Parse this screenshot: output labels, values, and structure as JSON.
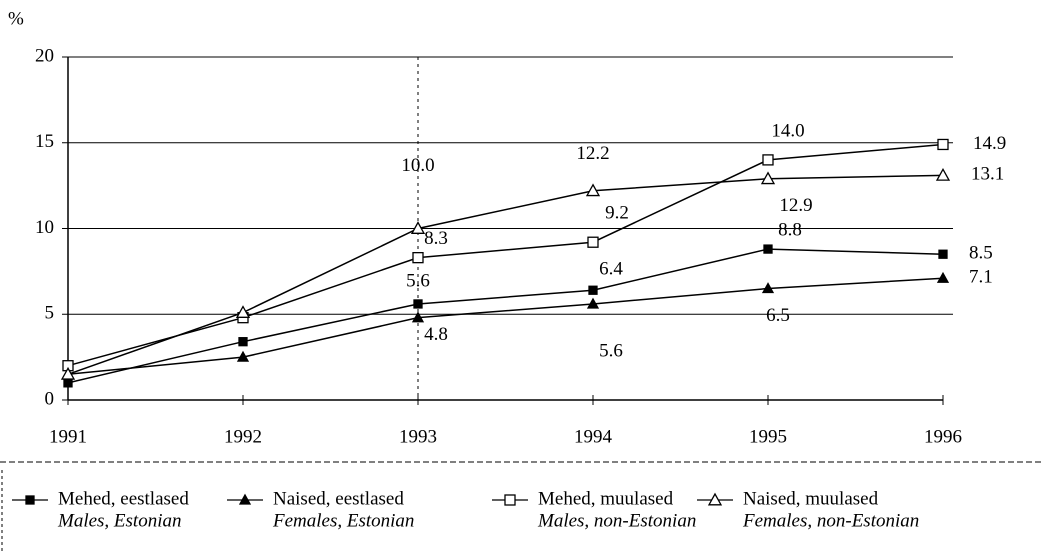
{
  "chart_data": {
    "type": "line",
    "ylabel": "%",
    "categories": [
      "1991",
      "1992",
      "1993",
      "1994",
      "1995",
      "1996"
    ],
    "ylim": [
      0,
      20
    ],
    "yticks": [
      0,
      5,
      10,
      15,
      20
    ],
    "grid": true,
    "series": [
      {
        "name": "Mehed, eestlased",
        "name_en": "Males, Estonian",
        "color": "#000000",
        "marker": "square-filled",
        "values": [
          1.0,
          3.4,
          5.6,
          6.4,
          8.8,
          8.5
        ],
        "value_labels": [
          null,
          null,
          "5.6",
          "6.4",
          "8.8",
          "8.5"
        ]
      },
      {
        "name": "Naised, eestlased",
        "name_en": "Females, Estonian",
        "color": "#000000",
        "marker": "triangle-filled",
        "values": [
          1.5,
          2.5,
          4.8,
          5.6,
          6.5,
          7.1
        ],
        "value_labels": [
          null,
          null,
          "4.8",
          "5.6",
          "6.5",
          "7.1"
        ]
      },
      {
        "name": "Mehed, muulased",
        "name_en": "Males, non-Estonian",
        "color": "#000000",
        "marker": "square-open",
        "values": [
          2.0,
          4.8,
          8.3,
          9.2,
          14.0,
          14.9
        ],
        "value_labels": [
          null,
          null,
          "8.3",
          "9.2",
          "14.0",
          "14.9"
        ]
      },
      {
        "name": "Naised, muulased",
        "name_en": "Females, non-Estonian",
        "color": "#000000",
        "marker": "triangle-open",
        "values": [
          1.5,
          5.1,
          10.0,
          12.2,
          12.9,
          13.1
        ],
        "value_labels": [
          null,
          null,
          "10.0",
          "12.2",
          "12.9",
          "13.1"
        ]
      }
    ]
  }
}
